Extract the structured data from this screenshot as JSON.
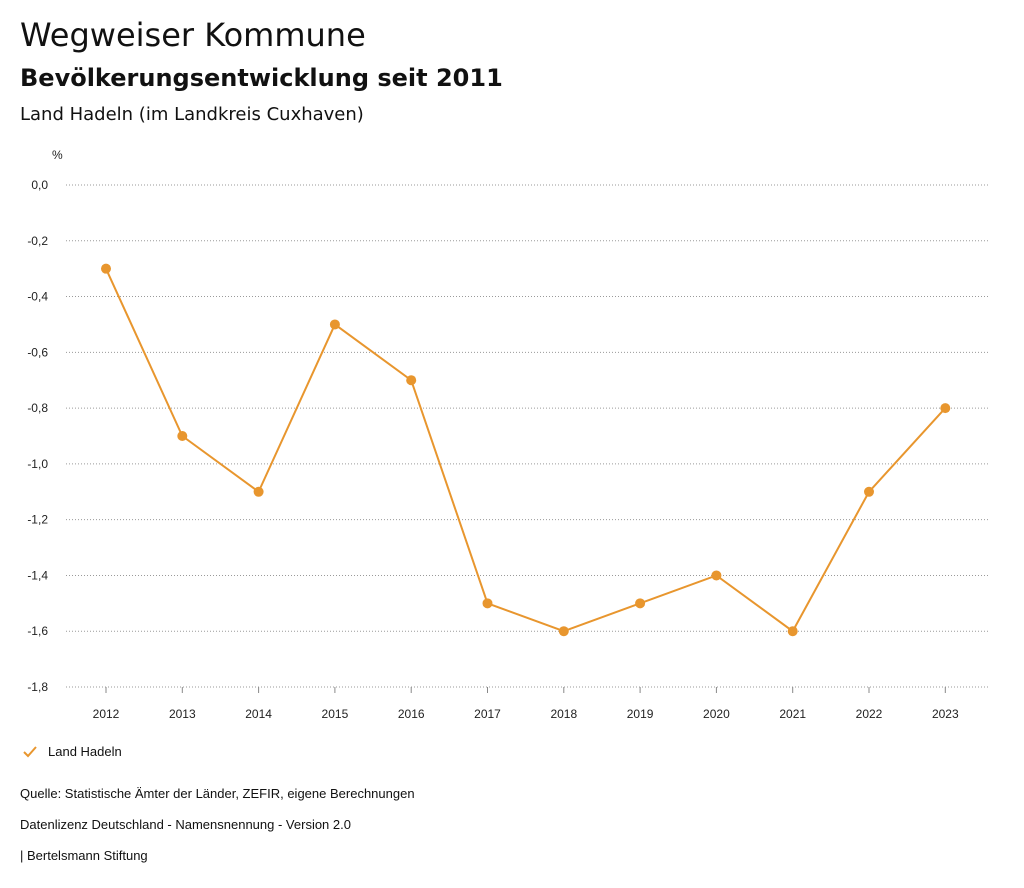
{
  "header": {
    "title": "Wegweiser Kommune",
    "subtitle": "Bevölkerungsentwicklung seit 2011",
    "region": "Land Hadeln (im Landkreis Cuxhaven)"
  },
  "chart_data": {
    "type": "line",
    "ylabel": "%",
    "ylim": [
      -1.8,
      0.0
    ],
    "yticks": [
      "0,0",
      "-0,2",
      "-0,4",
      "-0,6",
      "-0,8",
      "-1,0",
      "-1,2",
      "-1,4",
      "-1,6",
      "-1,8"
    ],
    "ytick_values": [
      0.0,
      -0.2,
      -0.4,
      -0.6,
      -0.8,
      -1.0,
      -1.2,
      -1.4,
      -1.6,
      -1.8
    ],
    "categories": [
      "2012",
      "2013",
      "2014",
      "2015",
      "2016",
      "2017",
      "2018",
      "2019",
      "2020",
      "2021",
      "2022",
      "2023"
    ],
    "grid": true,
    "series": [
      {
        "name": "Land Hadeln",
        "color": "#e8962e",
        "values": [
          -0.3,
          -0.9,
          -1.1,
          -0.5,
          -0.7,
          -1.5,
          -1.6,
          -1.5,
          -1.4,
          -1.6,
          -1.1,
          -0.8
        ]
      }
    ]
  },
  "legend": {
    "label": "Land Hadeln",
    "icon": "checkmark-icon"
  },
  "footer": {
    "source": "Quelle: Statistische Ämter der Länder, ZEFIR, eigene Berechnungen",
    "license": "Datenlizenz Deutschland - Namensnennung - Version 2.0",
    "publisher": "| Bertelsmann Stiftung"
  }
}
